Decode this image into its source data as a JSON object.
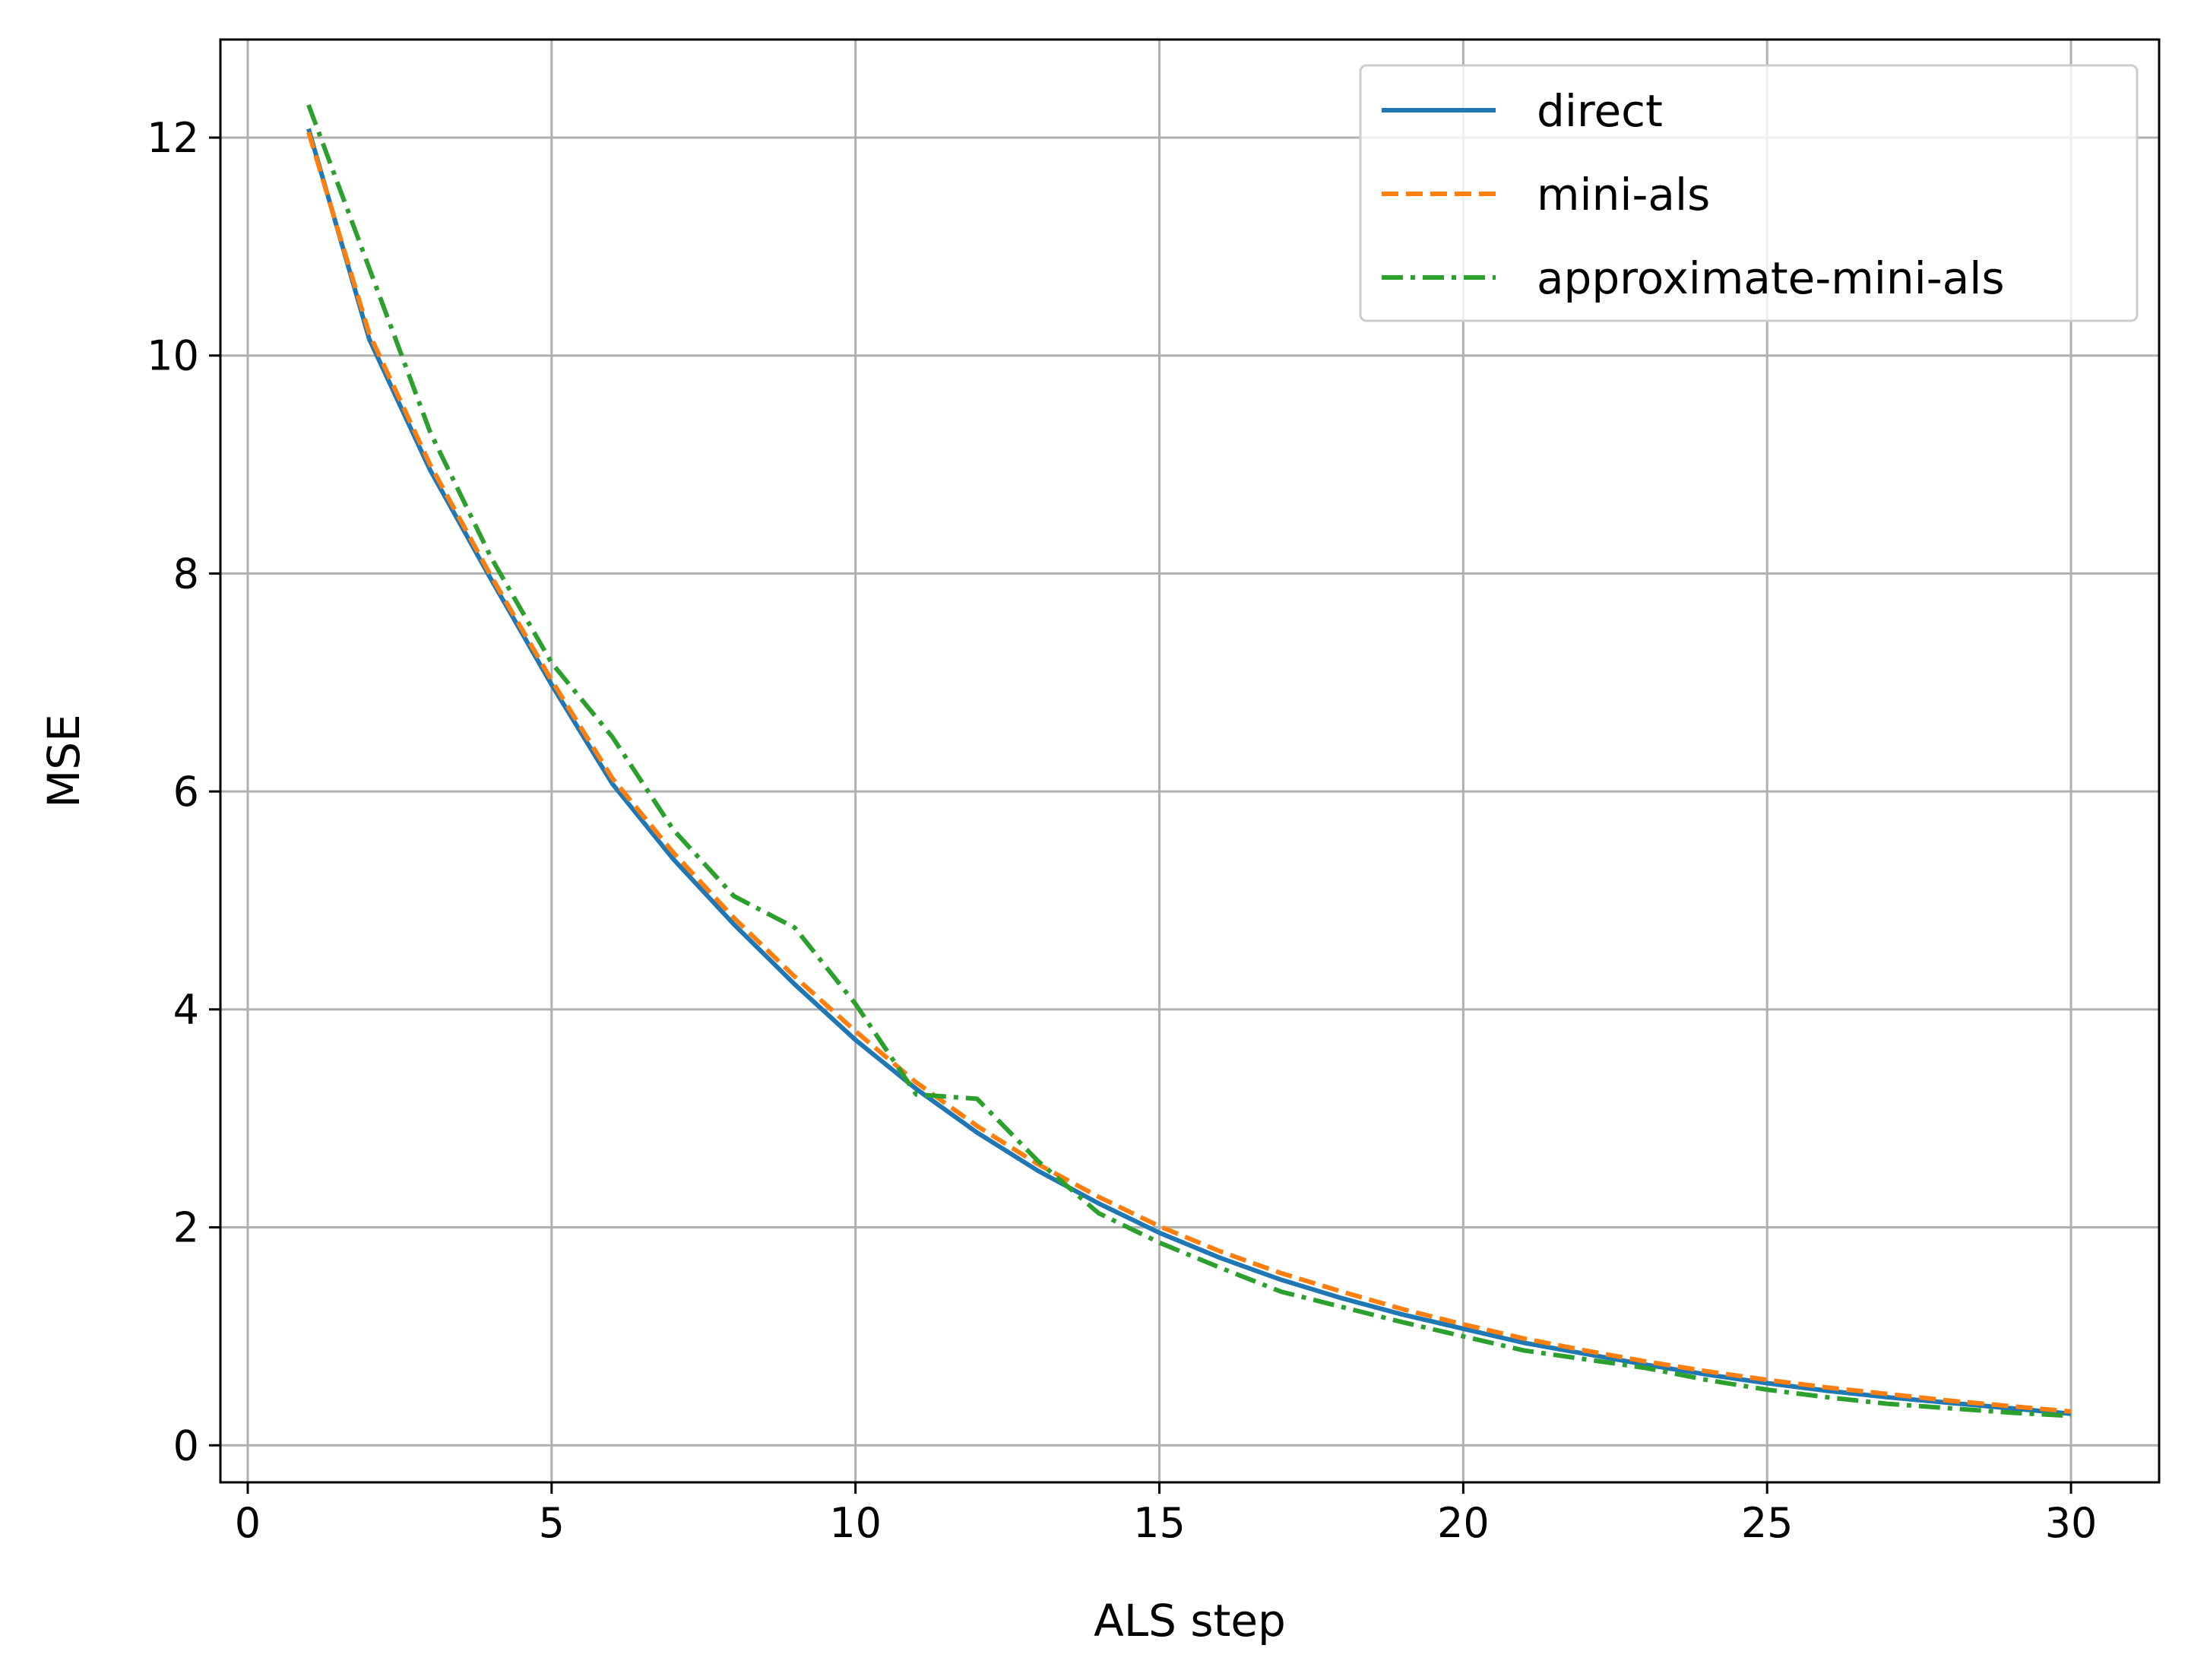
{
  "chart_data": {
    "type": "line",
    "title": "",
    "xlabel": "ALS step",
    "ylabel": "MSE",
    "xlim": [
      -0.45,
      31.45
    ],
    "ylim": [
      -0.34,
      12.9
    ],
    "xticks": [
      0,
      5,
      10,
      15,
      20,
      25,
      30
    ],
    "yticks": [
      0,
      2,
      4,
      6,
      8,
      10,
      12
    ],
    "grid": true,
    "legend_position": "top-right",
    "x": [
      1,
      2,
      3,
      4,
      5,
      6,
      7,
      8,
      9,
      10,
      11,
      12,
      13,
      14,
      15,
      16,
      17,
      18,
      19,
      20,
      21,
      22,
      23,
      24,
      25,
      26,
      27,
      28,
      29,
      30
    ],
    "series": [
      {
        "name": "direct",
        "color": "#1f77b4",
        "style": "solid",
        "values": [
          12.08,
          10.15,
          8.95,
          7.95,
          6.98,
          6.07,
          5.38,
          4.78,
          4.23,
          3.72,
          3.27,
          2.87,
          2.52,
          2.22,
          1.95,
          1.72,
          1.52,
          1.35,
          1.2,
          1.07,
          0.94,
          0.84,
          0.74,
          0.65,
          0.57,
          0.5,
          0.44,
          0.39,
          0.34,
          0.29
        ]
      },
      {
        "name": "mini-als",
        "color": "#ff7f0e",
        "style": "dashed",
        "values": [
          12.05,
          10.2,
          9.0,
          7.98,
          7.02,
          6.12,
          5.44,
          4.84,
          4.3,
          3.8,
          3.33,
          2.93,
          2.58,
          2.28,
          2.01,
          1.78,
          1.58,
          1.41,
          1.25,
          1.11,
          0.98,
          0.87,
          0.77,
          0.68,
          0.6,
          0.53,
          0.47,
          0.41,
          0.36,
          0.31
        ]
      },
      {
        "name": "approximate-mini-als",
        "color": "#2ca02c",
        "style": "dashdot",
        "values": [
          12.3,
          10.8,
          9.3,
          8.15,
          7.18,
          6.5,
          5.65,
          5.04,
          4.75,
          4.05,
          3.22,
          3.18,
          2.61,
          2.13,
          1.86,
          1.63,
          1.41,
          1.27,
          1.13,
          1.0,
          0.87,
          0.79,
          0.71,
          0.6,
          0.51,
          0.44,
          0.38,
          0.34,
          0.3,
          0.27
        ]
      }
    ]
  }
}
